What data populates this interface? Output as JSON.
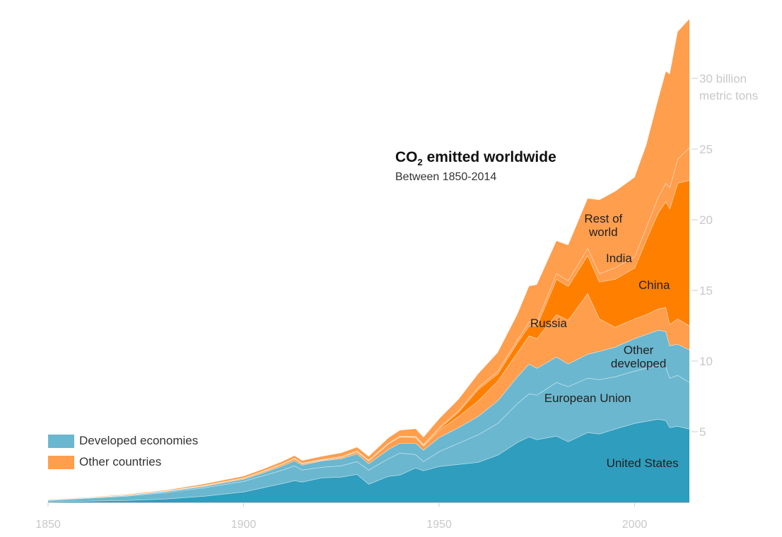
{
  "title": {
    "main": "CO",
    "sub": "2",
    "rest": " emitted worldwide",
    "subtitle": "Between 1850-2014"
  },
  "legend": [
    {
      "label": "Developed economies",
      "color": "#6bb7cf"
    },
    {
      "label": "Other countries",
      "color": "#ff9e4d"
    }
  ],
  "chart_data": {
    "type": "area",
    "stacked": true,
    "title": "CO2 emitted worldwide",
    "subtitle": "Between 1850-2014",
    "xlabel": "",
    "ylabel": "billion metric tons",
    "xlim": [
      1850,
      2014
    ],
    "ylim": [
      0,
      34
    ],
    "x_ticks": [
      1850,
      1900,
      1950,
      2000
    ],
    "y_ticks": [
      {
        "value": 5,
        "label": "5"
      },
      {
        "value": 10,
        "label": "10"
      },
      {
        "value": 15,
        "label": "15"
      },
      {
        "value": 20,
        "label": "20"
      },
      {
        "value": 25,
        "label": "25"
      },
      {
        "value": 30,
        "label": "30 billion",
        "label2": "metric tons"
      }
    ],
    "x": [
      1850,
      1860,
      1870,
      1880,
      1890,
      1900,
      1905,
      1910,
      1913,
      1915,
      1920,
      1925,
      1929,
      1932,
      1937,
      1940,
      1944,
      1946,
      1950,
      1955,
      1960,
      1965,
      1970,
      1973,
      1975,
      1980,
      1983,
      1988,
      1991,
      1995,
      2000,
      2003,
      2006,
      2008,
      2009,
      2011,
      2014
    ],
    "series": [
      {
        "name": "United States",
        "label": "United States",
        "color": "#2f9dbd",
        "label_year": 2002,
        "label_value": 2.5,
        "values": [
          0.05,
          0.1,
          0.15,
          0.25,
          0.45,
          0.75,
          1.05,
          1.35,
          1.55,
          1.45,
          1.75,
          1.8,
          2.0,
          1.3,
          1.85,
          1.95,
          2.45,
          2.25,
          2.55,
          2.7,
          2.85,
          3.35,
          4.25,
          4.65,
          4.45,
          4.7,
          4.3,
          4.95,
          4.85,
          5.2,
          5.6,
          5.75,
          5.9,
          5.8,
          5.3,
          5.4,
          5.2
        ]
      },
      {
        "name": "European Union",
        "label": "European Union",
        "color": "#6bb7cf",
        "label_year": 1988,
        "label_value": 7.1,
        "values": [
          0.1,
          0.2,
          0.3,
          0.45,
          0.6,
          0.75,
          0.85,
          0.95,
          1.05,
          0.85,
          0.75,
          0.8,
          0.9,
          1.0,
          1.25,
          1.55,
          0.95,
          0.65,
          1.05,
          1.5,
          1.95,
          2.25,
          2.75,
          3.05,
          3.15,
          3.8,
          3.9,
          3.85,
          3.85,
          3.7,
          3.7,
          3.75,
          3.8,
          3.8,
          3.5,
          3.6,
          3.3
        ]
      },
      {
        "name": "Other developed",
        "label": "Other",
        "label2": "developed",
        "color": "#6bb7cf",
        "label_year": 2001,
        "label_value": 10.5,
        "values": [
          0.03,
          0.03,
          0.05,
          0.08,
          0.1,
          0.15,
          0.2,
          0.3,
          0.35,
          0.35,
          0.45,
          0.5,
          0.55,
          0.45,
          0.65,
          0.7,
          0.8,
          0.8,
          1.0,
          1.1,
          1.3,
          1.6,
          1.9,
          2.1,
          1.9,
          1.8,
          1.6,
          1.7,
          2.0,
          2.1,
          2.3,
          2.4,
          2.5,
          2.5,
          2.3,
          2.2,
          2.3
        ]
      },
      {
        "name": "Russia",
        "label": "Russia",
        "color": "#ff9e4d",
        "label_year": 1978,
        "label_value": 12.4,
        "values": [
          0.01,
          0.01,
          0.02,
          0.02,
          0.05,
          0.07,
          0.1,
          0.12,
          0.15,
          0.1,
          0.05,
          0.1,
          0.15,
          0.2,
          0.4,
          0.45,
          0.4,
          0.3,
          0.5,
          0.8,
          1.1,
          1.4,
          1.7,
          2.0,
          2.1,
          3.0,
          3.1,
          4.3,
          2.3,
          1.4,
          1.4,
          1.4,
          1.5,
          1.7,
          1.5,
          1.8,
          1.7
        ]
      },
      {
        "name": "China",
        "label": "China",
        "color": "#ff7f00",
        "label_year": 2005,
        "label_value": 15.1,
        "values": [
          0,
          0,
          0,
          0,
          0,
          0,
          0,
          0,
          0,
          0,
          0,
          0,
          0,
          0,
          0,
          0,
          0.05,
          0.05,
          0.1,
          0.3,
          0.8,
          0.5,
          0.7,
          0.7,
          0.9,
          2.5,
          2.4,
          2.7,
          2.6,
          3.4,
          3.6,
          5.3,
          6.8,
          7.5,
          8.2,
          9.6,
          10.3
        ]
      },
      {
        "name": "India",
        "label": "India",
        "color": "#ff9e4d",
        "label_year": 1996,
        "label_value": 17.0,
        "values": [
          0,
          0,
          0,
          0.01,
          0.01,
          0.02,
          0.02,
          0.03,
          0.03,
          0.03,
          0.05,
          0.05,
          0.05,
          0.05,
          0.05,
          0.05,
          0.05,
          0.05,
          0.1,
          0.1,
          0.15,
          0.2,
          0.2,
          0.3,
          0.3,
          0.4,
          0.4,
          0.5,
          0.6,
          0.8,
          0.8,
          0.9,
          1.1,
          1.3,
          1.5,
          1.7,
          2.3
        ]
      },
      {
        "name": "Rest of world",
        "label": "Rest of",
        "label2": "world",
        "color": "#ff9e4d",
        "label_year": 1992,
        "label_value": 19.8,
        "values": [
          0.01,
          0.01,
          0.03,
          0.04,
          0.09,
          0.11,
          0.13,
          0.15,
          0.17,
          0.17,
          0.2,
          0.25,
          0.25,
          0.25,
          0.35,
          0.4,
          0.5,
          0.5,
          0.6,
          0.8,
          0.95,
          1.3,
          1.8,
          2.5,
          2.6,
          2.3,
          2.5,
          3.5,
          5.2,
          5.4,
          5.6,
          5.8,
          6.9,
          7.9,
          8.0,
          9.0,
          9.1
        ]
      }
    ]
  }
}
